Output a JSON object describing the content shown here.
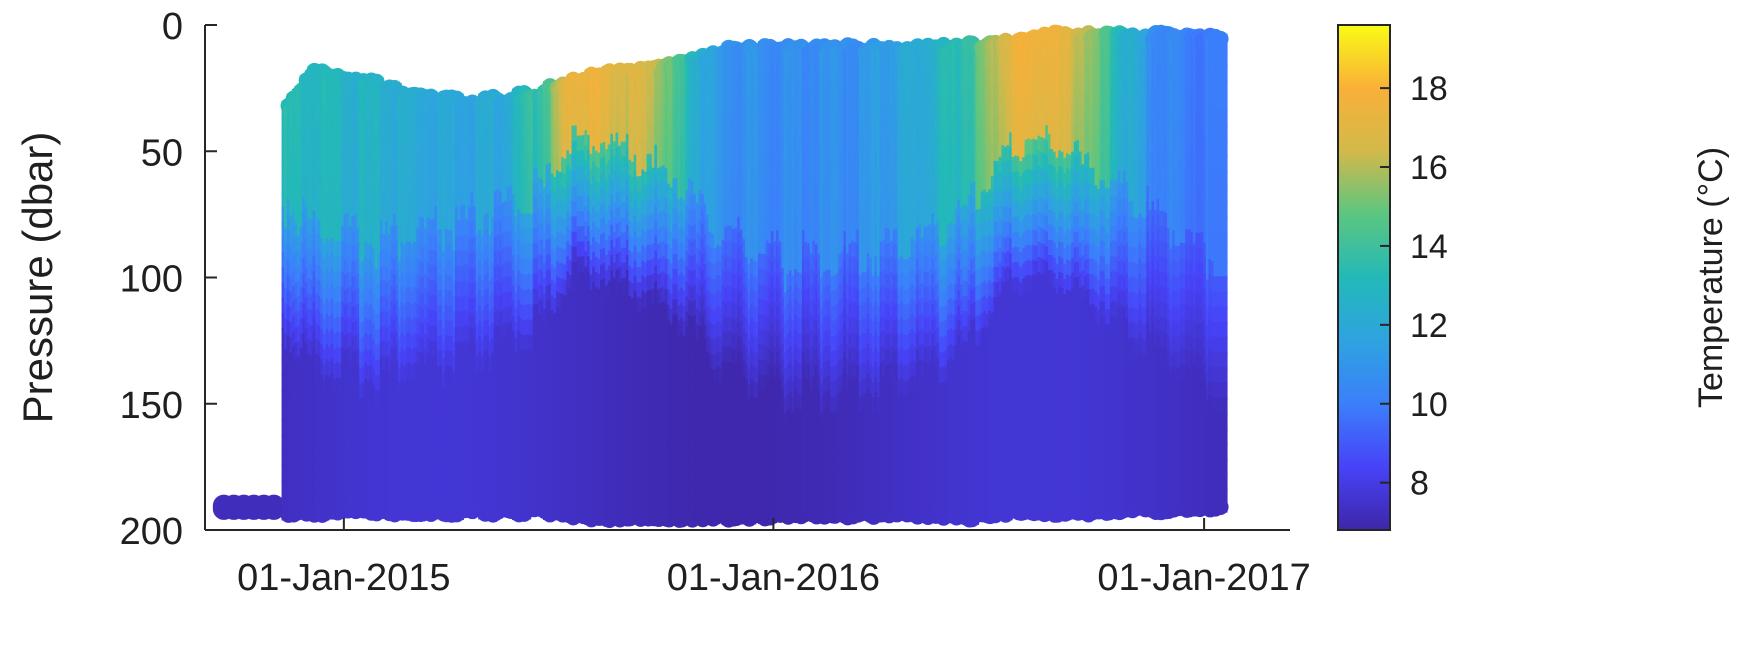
{
  "chart_data": {
    "type": "heatmap",
    "subtype": "profile-scatter (time vs pressure, colored by temperature)",
    "ylabel": "Pressure (dbar)",
    "yticks": [
      0,
      50,
      100,
      150,
      200
    ],
    "ylim": [
      200,
      0
    ],
    "y_reversed": true,
    "xticks": [
      "01-Jan-2015",
      "01-Jan-2016",
      "01-Jan-2017"
    ],
    "xlim": [
      "2014-09-05",
      "2017-03-15"
    ],
    "colorbar": {
      "label": "Temperature (°C)",
      "ticks": [
        8,
        10,
        12,
        14,
        16,
        18
      ],
      "range": [
        6.8,
        19.6
      ],
      "colormap": [
        "#3e26a8",
        "#4743f8",
        "#3b7ffb",
        "#2ea3e0",
        "#23b9b8",
        "#5bc680",
        "#d2b94a",
        "#f9b038",
        "#f9fb15"
      ]
    },
    "profiles": [
      {
        "date": "2014-10-08",
        "top": 186,
        "bottom": 196,
        "surface_temp": 7.2,
        "mld": 190
      },
      {
        "date": "2014-11-15",
        "top": 30,
        "bottom": 196,
        "surface_temp": 13.4,
        "mld": 66
      },
      {
        "date": "2014-12-05",
        "top": 16,
        "bottom": 196,
        "surface_temp": 13.2,
        "mld": 75
      },
      {
        "date": "2015-01-20",
        "top": 18,
        "bottom": 196,
        "surface_temp": 12.8,
        "mld": 82
      },
      {
        "date": "2015-02-25",
        "top": 25,
        "bottom": 196,
        "surface_temp": 12.3,
        "mld": 80
      },
      {
        "date": "2015-04-10",
        "top": 27,
        "bottom": 196,
        "surface_temp": 12.0,
        "mld": 78
      },
      {
        "date": "2015-05-20",
        "top": 26,
        "bottom": 196,
        "surface_temp": 12.2,
        "mld": 70
      },
      {
        "date": "2015-06-25",
        "top": 22,
        "bottom": 196,
        "surface_temp": 14.5,
        "mld": 60
      },
      {
        "date": "2015-07-20",
        "top": 18,
        "bottom": 198,
        "surface_temp": 18.2,
        "mld": 40
      },
      {
        "date": "2015-08-20",
        "top": 16,
        "bottom": 198,
        "surface_temp": 17.3,
        "mld": 45
      },
      {
        "date": "2015-09-25",
        "top": 14,
        "bottom": 198,
        "surface_temp": 16.6,
        "mld": 52
      },
      {
        "date": "2015-10-20",
        "top": 12,
        "bottom": 198,
        "surface_temp": 13.8,
        "mld": 60
      },
      {
        "date": "2015-11-20",
        "top": 7,
        "bottom": 198,
        "surface_temp": 11.0,
        "mld": 78
      },
      {
        "date": "2016-01-15",
        "top": 6,
        "bottom": 197,
        "surface_temp": 10.6,
        "mld": 90
      },
      {
        "date": "2016-03-15",
        "top": 6,
        "bottom": 197,
        "surface_temp": 10.8,
        "mld": 88
      },
      {
        "date": "2016-05-15",
        "top": 6,
        "bottom": 197,
        "surface_temp": 12.4,
        "mld": 80
      },
      {
        "date": "2016-06-20",
        "top": 5,
        "bottom": 198,
        "surface_temp": 14.0,
        "mld": 70
      },
      {
        "date": "2016-07-25",
        "top": 3,
        "bottom": 196,
        "surface_temp": 17.5,
        "mld": 45
      },
      {
        "date": "2016-08-25",
        "top": 1,
        "bottom": 196,
        "surface_temp": 17.8,
        "mld": 42
      },
      {
        "date": "2016-09-25",
        "top": 1,
        "bottom": 196,
        "surface_temp": 16.2,
        "mld": 50
      },
      {
        "date": "2016-10-25",
        "top": 1,
        "bottom": 195,
        "surface_temp": 13.0,
        "mld": 60
      },
      {
        "date": "2016-11-25",
        "top": 1,
        "bottom": 195,
        "surface_temp": 10.5,
        "mld": 70
      },
      {
        "date": "2017-01-15",
        "top": 2,
        "bottom": 194,
        "surface_temp": 9.8,
        "mld": 90
      }
    ]
  }
}
